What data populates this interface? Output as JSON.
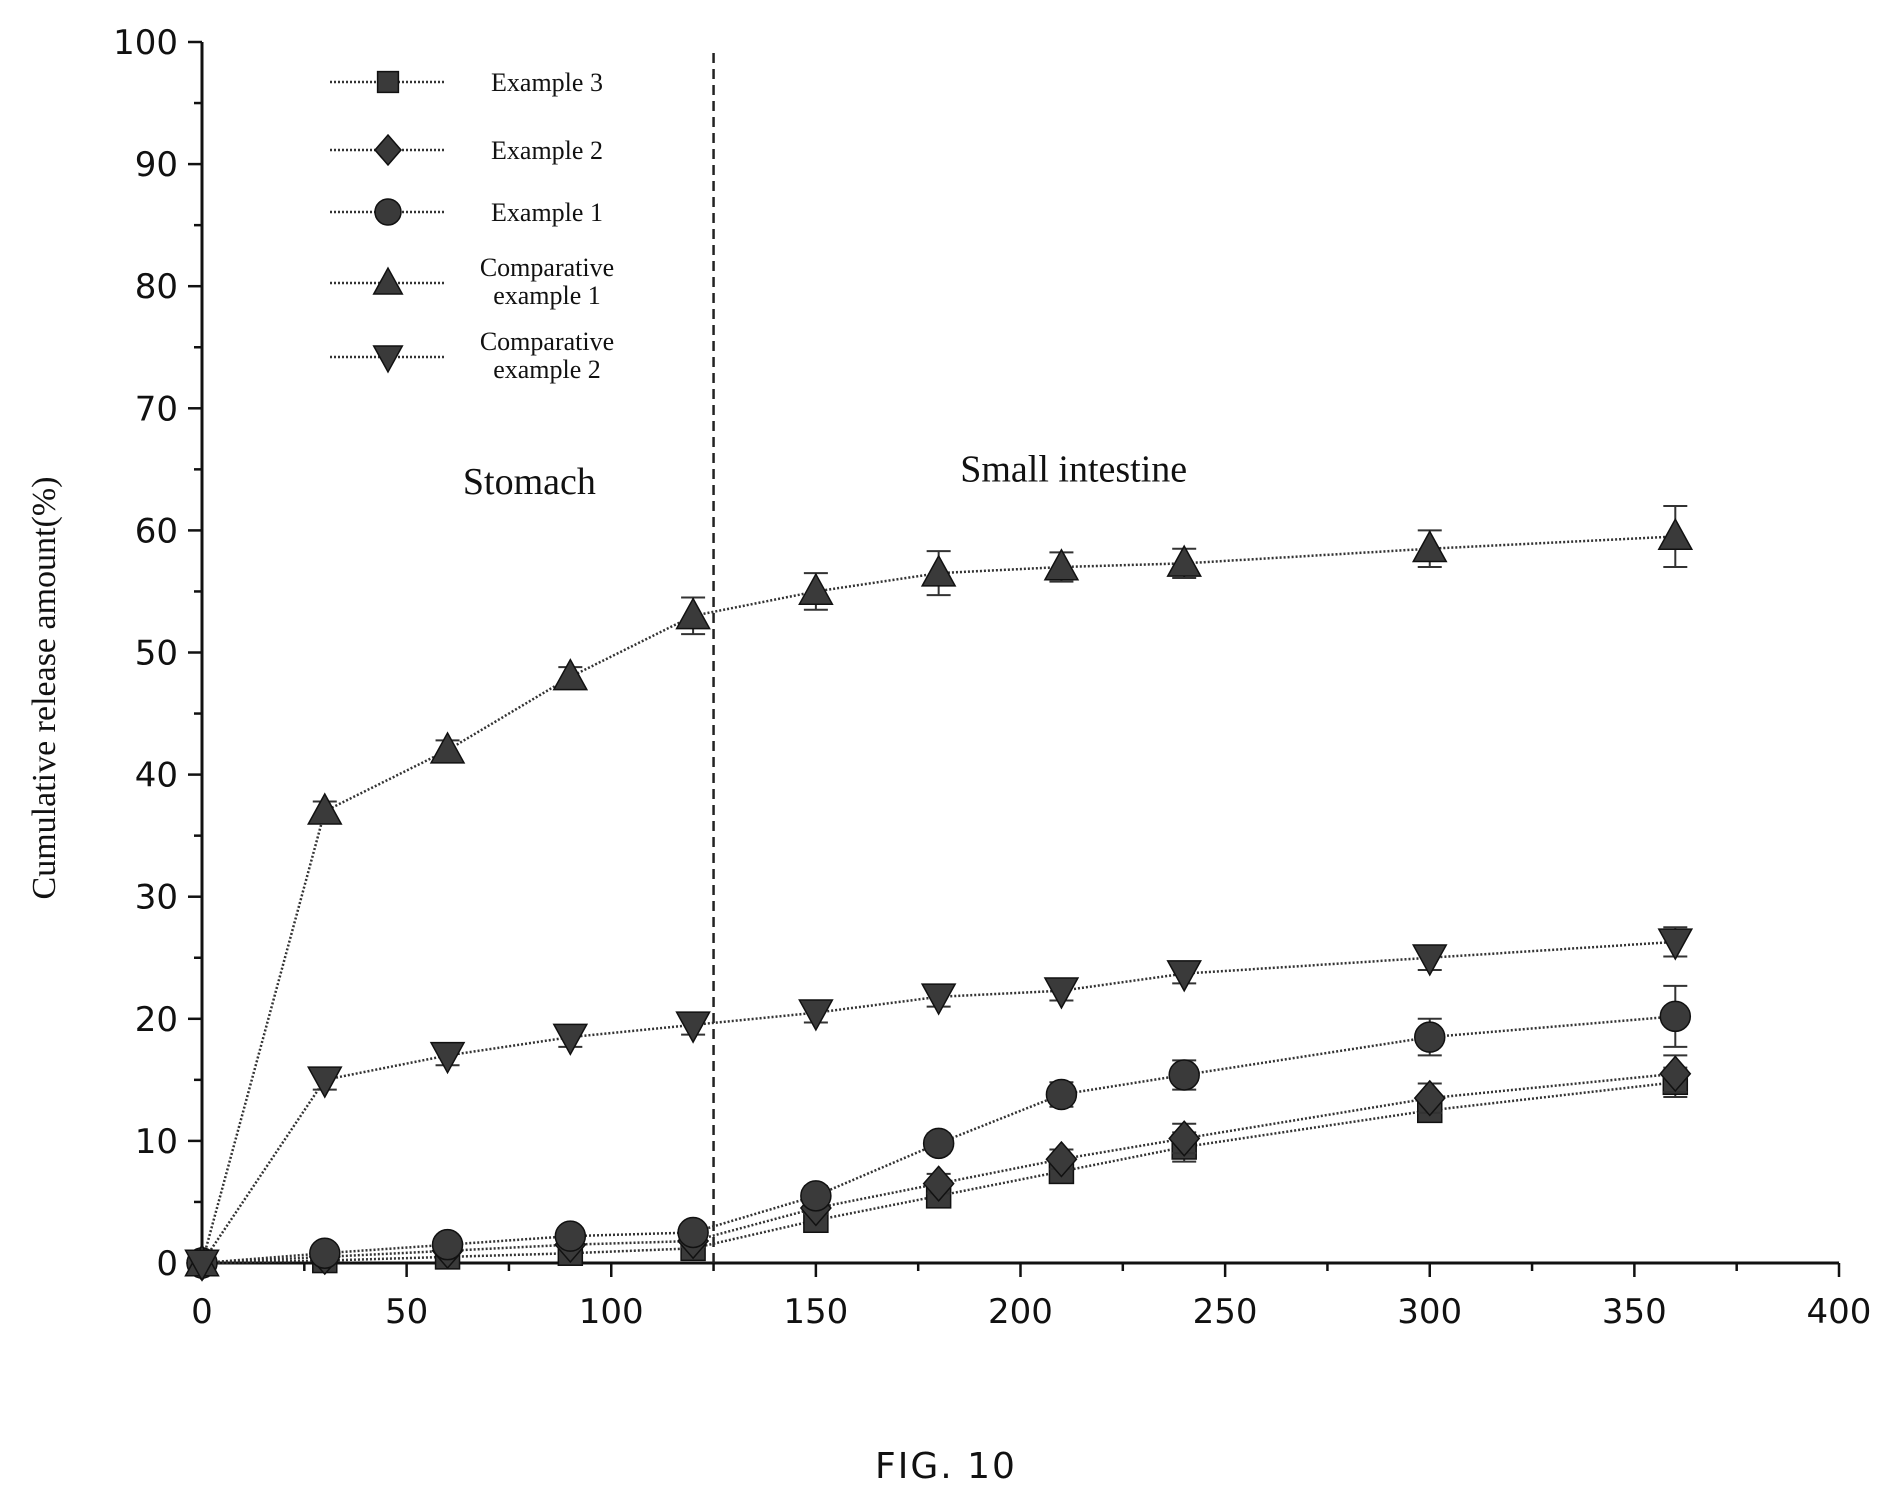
{
  "caption": "FIG. 10",
  "chart_data": {
    "type": "line",
    "title": "",
    "xlabel": "",
    "ylabel": "Cumulative release amount(%)",
    "xlim": [
      0,
      400
    ],
    "ylim": [
      0,
      100
    ],
    "x_ticks": [
      0,
      50,
      100,
      150,
      200,
      250,
      300,
      350,
      400
    ],
    "y_ticks": [
      0,
      10,
      20,
      30,
      40,
      50,
      60,
      70,
      80,
      90,
      100
    ],
    "x_tick_labels": [
      "0",
      "50",
      "100",
      "150",
      "200",
      "250",
      "300",
      "350",
      "400"
    ],
    "y_tick_labels": [
      "0",
      "10",
      "20",
      "30",
      "40",
      "50",
      "60",
      "70",
      "80",
      "90",
      "100"
    ],
    "grid": false,
    "legend_position": "top-left",
    "divider_x": 125,
    "regions": [
      {
        "label": "Stomach",
        "x": 80,
        "y": 63
      },
      {
        "label": "Small intestine",
        "x": 213,
        "y": 64
      }
    ],
    "x": [
      0,
      30,
      60,
      90,
      120,
      150,
      180,
      210,
      240,
      300,
      360
    ],
    "series": [
      {
        "name": "Example 3",
        "marker": "square",
        "values": [
          0,
          0.2,
          0.5,
          0.8,
          1.2,
          3.5,
          5.5,
          7.5,
          9.5,
          12.5,
          14.8
        ],
        "errors": [
          0,
          0,
          0,
          0,
          0.5,
          0.5,
          0.8,
          0.8,
          1.2,
          0.8,
          1.2
        ]
      },
      {
        "name": "Example 2",
        "marker": "diamond",
        "values": [
          0,
          0.5,
          1.0,
          1.5,
          1.8,
          4.5,
          6.5,
          8.5,
          10.2,
          13.5,
          15.5
        ],
        "errors": [
          0,
          0,
          0,
          0,
          0.5,
          0.5,
          0.8,
          0.8,
          1.2,
          1.2,
          1.5
        ]
      },
      {
        "name": "Example 1",
        "marker": "circle",
        "values": [
          0,
          0.8,
          1.5,
          2.2,
          2.5,
          5.5,
          9.8,
          13.8,
          15.4,
          18.5,
          20.2
        ],
        "errors": [
          0,
          0,
          0,
          0,
          0.5,
          0.8,
          0.8,
          1.0,
          1.2,
          1.5,
          2.5
        ]
      },
      {
        "name": "Comparative\nexample 1",
        "marker": "triangle-up",
        "values": [
          0,
          37,
          42,
          48,
          53,
          55,
          56.5,
          57,
          57.3,
          58.5,
          59.5
        ],
        "errors": [
          0,
          0.8,
          0.8,
          0.8,
          1.5,
          1.5,
          1.8,
          1.2,
          1.2,
          1.5,
          2.5
        ]
      },
      {
        "name": "Comparative\nexample 2",
        "marker": "triangle-down",
        "values": [
          0,
          15,
          17,
          18.5,
          19.5,
          20.5,
          21.8,
          22.3,
          23.7,
          25,
          26.3
        ],
        "errors": [
          0,
          0.8,
          0.8,
          0.8,
          0.8,
          0.8,
          0.8,
          0.8,
          0.8,
          1.0,
          1.2
        ]
      }
    ]
  }
}
